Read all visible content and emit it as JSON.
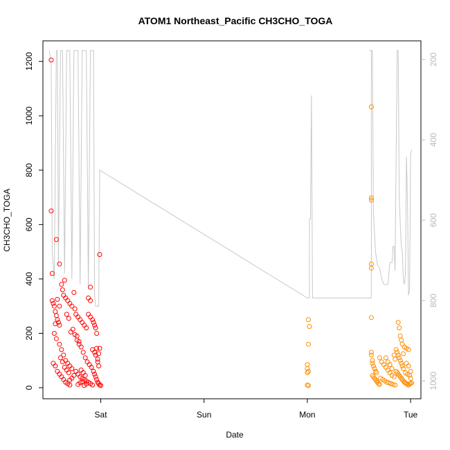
{
  "chart_data": {
    "type": "scatter",
    "title": "ATOM1 Northeast_Pacific CH3CHO_TOGA",
    "xlabel": "Date",
    "ylabel": "CH3CHO_TOGA",
    "x_unit": "days",
    "x_ticks": [
      {
        "label": "Sat",
        "x": 1.0
      },
      {
        "label": "Sun",
        "x": 2.0
      },
      {
        "label": "Mon",
        "x": 3.0
      },
      {
        "label": "Tue",
        "x": 4.0
      }
    ],
    "xlim": [
      0.44,
      4.1
    ],
    "ylim": [
      0,
      1240
    ],
    "y_ticks": [
      0,
      200,
      400,
      600,
      800,
      1000,
      1200
    ],
    "y2_ticks": [
      200,
      400,
      600,
      800,
      1000
    ],
    "y2_range_top_bottom": [
      200,
      1010
    ],
    "grid": false,
    "series": [
      {
        "color": "#ff0000",
        "points": [
          [
            0.52,
            1205
          ],
          [
            0.52,
            650
          ],
          [
            0.53,
            420
          ],
          [
            0.57,
            545
          ],
          [
            0.6,
            455
          ],
          [
            0.53,
            320
          ],
          [
            0.54,
            310
          ],
          [
            0.55,
            300
          ],
          [
            0.56,
            280
          ],
          [
            0.57,
            265
          ],
          [
            0.58,
            250
          ],
          [
            0.59,
            240
          ],
          [
            0.6,
            230
          ],
          [
            0.62,
            380
          ],
          [
            0.63,
            360
          ],
          [
            0.64,
            340
          ],
          [
            0.66,
            330
          ],
          [
            0.68,
            320
          ],
          [
            0.7,
            310
          ],
          [
            0.72,
            300
          ],
          [
            0.74,
            350
          ],
          [
            0.75,
            290
          ],
          [
            0.55,
            200
          ],
          [
            0.57,
            180
          ],
          [
            0.6,
            160
          ],
          [
            0.62,
            140
          ],
          [
            0.64,
            120
          ],
          [
            0.66,
            100
          ],
          [
            0.68,
            90
          ],
          [
            0.7,
            80
          ],
          [
            0.72,
            70
          ],
          [
            0.54,
            90
          ],
          [
            0.56,
            80
          ],
          [
            0.58,
            60
          ],
          [
            0.6,
            50
          ],
          [
            0.62,
            40
          ],
          [
            0.64,
            30
          ],
          [
            0.66,
            20
          ],
          [
            0.68,
            15
          ],
          [
            0.7,
            10
          ],
          [
            0.76,
            270
          ],
          [
            0.78,
            260
          ],
          [
            0.8,
            250
          ],
          [
            0.82,
            240
          ],
          [
            0.84,
            230
          ],
          [
            0.86,
            220
          ],
          [
            0.88,
            330
          ],
          [
            0.9,
            320
          ],
          [
            0.77,
            190
          ],
          [
            0.79,
            170
          ],
          [
            0.81,
            150
          ],
          [
            0.83,
            130
          ],
          [
            0.85,
            110
          ],
          [
            0.87,
            95
          ],
          [
            0.89,
            85
          ],
          [
            0.91,
            75
          ],
          [
            0.76,
            60
          ],
          [
            0.78,
            50
          ],
          [
            0.8,
            40
          ],
          [
            0.82,
            35
          ],
          [
            0.84,
            30
          ],
          [
            0.86,
            25
          ],
          [
            0.88,
            20
          ],
          [
            0.9,
            15
          ],
          [
            0.92,
            10
          ],
          [
            0.74,
            45
          ],
          [
            0.72,
            35
          ],
          [
            0.7,
            28
          ],
          [
            0.78,
            12
          ],
          [
            0.8,
            18
          ],
          [
            0.82,
            22
          ],
          [
            0.84,
            8
          ],
          [
            0.86,
            14
          ],
          [
            0.88,
            270
          ],
          [
            0.9,
            260
          ],
          [
            0.92,
            250
          ],
          [
            0.93,
            240
          ],
          [
            0.94,
            230
          ],
          [
            0.95,
            220
          ],
          [
            0.96,
            200
          ],
          [
            0.9,
            370
          ],
          [
            0.92,
            140
          ],
          [
            0.94,
            130
          ],
          [
            0.95,
            120
          ],
          [
            0.96,
            145
          ],
          [
            0.97,
            95
          ],
          [
            0.98,
            80
          ],
          [
            0.93,
            60
          ],
          [
            0.94,
            50
          ],
          [
            0.95,
            40
          ],
          [
            0.96,
            30
          ],
          [
            0.97,
            20
          ],
          [
            0.98,
            15
          ],
          [
            0.99,
            10
          ],
          [
            1.0,
            8
          ],
          [
            0.99,
            490
          ],
          [
            0.99,
            145
          ],
          [
            0.98,
            125
          ],
          [
            0.97,
            105
          ],
          [
            0.65,
            395
          ],
          [
            0.67,
            270
          ],
          [
            0.69,
            255
          ],
          [
            0.71,
            205
          ],
          [
            0.73,
            215
          ],
          [
            0.75,
            195
          ],
          [
            0.77,
            175
          ],
          [
            0.79,
            160
          ],
          [
            0.81,
            65
          ],
          [
            0.83,
            55
          ],
          [
            0.85,
            45
          ],
          [
            0.6,
            300
          ],
          [
            0.58,
            325
          ],
          [
            0.56,
            235
          ],
          [
            0.61,
            110
          ],
          [
            0.63,
            95
          ],
          [
            0.65,
            75
          ],
          [
            0.67,
            65
          ],
          [
            0.69,
            55
          ]
        ]
      },
      {
        "color": "#ff8c00",
        "points": [
          [
            3.01,
            250
          ],
          [
            3.02,
            225
          ],
          [
            3.01,
            160
          ],
          [
            3.0,
            85
          ],
          [
            3.0,
            70
          ],
          [
            3.01,
            60
          ],
          [
            3.0,
            55
          ],
          [
            3.0,
            10
          ],
          [
            3.01,
            8
          ],
          [
            3.62,
            1033
          ],
          [
            3.62,
            698
          ],
          [
            3.62,
            690
          ],
          [
            3.62,
            455
          ],
          [
            3.62,
            440
          ],
          [
            3.62,
            258
          ],
          [
            3.62,
            130
          ],
          [
            3.62,
            120
          ],
          [
            3.63,
            100
          ],
          [
            3.63,
            90
          ],
          [
            3.64,
            80
          ],
          [
            3.65,
            70
          ],
          [
            3.66,
            60
          ],
          [
            3.67,
            55
          ],
          [
            3.63,
            45
          ],
          [
            3.64,
            40
          ],
          [
            3.65,
            35
          ],
          [
            3.66,
            30
          ],
          [
            3.67,
            25
          ],
          [
            3.68,
            20
          ],
          [
            3.69,
            15
          ],
          [
            3.7,
            12
          ],
          [
            3.7,
            110
          ],
          [
            3.72,
            95
          ],
          [
            3.74,
            85
          ],
          [
            3.76,
            75
          ],
          [
            3.78,
            65
          ],
          [
            3.8,
            55
          ],
          [
            3.82,
            45
          ],
          [
            3.84,
            40
          ],
          [
            3.71,
            35
          ],
          [
            3.73,
            30
          ],
          [
            3.75,
            25
          ],
          [
            3.77,
            20
          ],
          [
            3.79,
            18
          ],
          [
            3.81,
            15
          ],
          [
            3.83,
            12
          ],
          [
            3.85,
            10
          ],
          [
            3.86,
            140
          ],
          [
            3.87,
            130
          ],
          [
            3.88,
            120
          ],
          [
            3.89,
            110
          ],
          [
            3.9,
            100
          ],
          [
            3.91,
            90
          ],
          [
            3.92,
            80
          ],
          [
            3.93,
            70
          ],
          [
            3.88,
            240
          ],
          [
            3.89,
            220
          ],
          [
            3.9,
            190
          ],
          [
            3.91,
            175
          ],
          [
            3.92,
            160
          ],
          [
            3.94,
            150
          ],
          [
            3.96,
            145
          ],
          [
            3.98,
            140
          ],
          [
            3.86,
            60
          ],
          [
            3.87,
            55
          ],
          [
            3.88,
            50
          ],
          [
            3.89,
            45
          ],
          [
            3.9,
            40
          ],
          [
            3.91,
            35
          ],
          [
            3.92,
            30
          ],
          [
            3.93,
            25
          ],
          [
            3.94,
            20
          ],
          [
            3.95,
            18
          ],
          [
            3.96,
            15
          ],
          [
            3.97,
            12
          ],
          [
            3.98,
            10
          ],
          [
            3.99,
            14
          ],
          [
            4.0,
            16
          ],
          [
            4.01,
            18
          ],
          [
            3.95,
            55
          ],
          [
            3.97,
            50
          ],
          [
            3.99,
            45
          ],
          [
            4.0,
            35
          ],
          [
            3.76,
            110
          ],
          [
            3.78,
            95
          ],
          [
            3.8,
            85
          ],
          [
            3.82,
            70
          ],
          [
            3.84,
            120
          ],
          [
            3.85,
            105
          ],
          [
            3.93,
            125
          ],
          [
            3.96,
            90
          ],
          [
            3.98,
            80
          ],
          [
            4.0,
            60
          ]
        ]
      }
    ],
    "altitude_track": [
      [
        0.5,
        1240
      ],
      [
        0.52,
        1200
      ],
      [
        0.53,
        500
      ],
      [
        0.55,
        400
      ],
      [
        0.57,
        1240
      ],
      [
        0.58,
        1240
      ],
      [
        0.59,
        450
      ],
      [
        0.61,
        1240
      ],
      [
        0.63,
        1240
      ],
      [
        0.65,
        420
      ],
      [
        0.67,
        1240
      ],
      [
        0.7,
        1240
      ],
      [
        0.72,
        400
      ],
      [
        0.74,
        1240
      ],
      [
        0.78,
        1240
      ],
      [
        0.8,
        380
      ],
      [
        0.82,
        1240
      ],
      [
        0.86,
        1240
      ],
      [
        0.88,
        360
      ],
      [
        0.9,
        1240
      ],
      [
        0.93,
        1240
      ],
      [
        0.94,
        340
      ],
      [
        0.95,
        300
      ],
      [
        0.98,
        300
      ],
      [
        0.99,
        800
      ],
      [
        3.0,
        330
      ],
      [
        3.02,
        330
      ],
      [
        3.02,
        620
      ],
      [
        3.03,
        620
      ],
      [
        3.04,
        1075
      ],
      [
        3.05,
        330
      ],
      [
        3.62,
        330
      ],
      [
        3.62,
        1240
      ],
      [
        3.6,
        1240
      ],
      [
        3.62,
        1240
      ],
      [
        3.63,
        1240
      ],
      [
        3.64,
        640
      ],
      [
        3.66,
        500
      ],
      [
        3.68,
        450
      ],
      [
        3.7,
        440
      ],
      [
        3.72,
        400
      ],
      [
        3.74,
        380
      ],
      [
        3.76,
        380
      ],
      [
        3.78,
        380
      ],
      [
        3.8,
        460
      ],
      [
        3.82,
        460
      ],
      [
        3.83,
        520
      ],
      [
        3.84,
        520
      ],
      [
        3.85,
        430
      ],
      [
        3.86,
        850
      ],
      [
        3.87,
        1240
      ],
      [
        3.88,
        1240
      ],
      [
        3.89,
        700
      ],
      [
        3.9,
        600
      ],
      [
        3.91,
        520
      ],
      [
        3.92,
        500
      ],
      [
        3.93,
        400
      ],
      [
        3.94,
        380
      ],
      [
        3.95,
        420
      ],
      [
        3.96,
        850
      ],
      [
        3.97,
        680
      ],
      [
        3.98,
        340
      ],
      [
        3.99,
        360
      ],
      [
        4.0,
        860
      ],
      [
        4.01,
        875
      ]
    ]
  }
}
